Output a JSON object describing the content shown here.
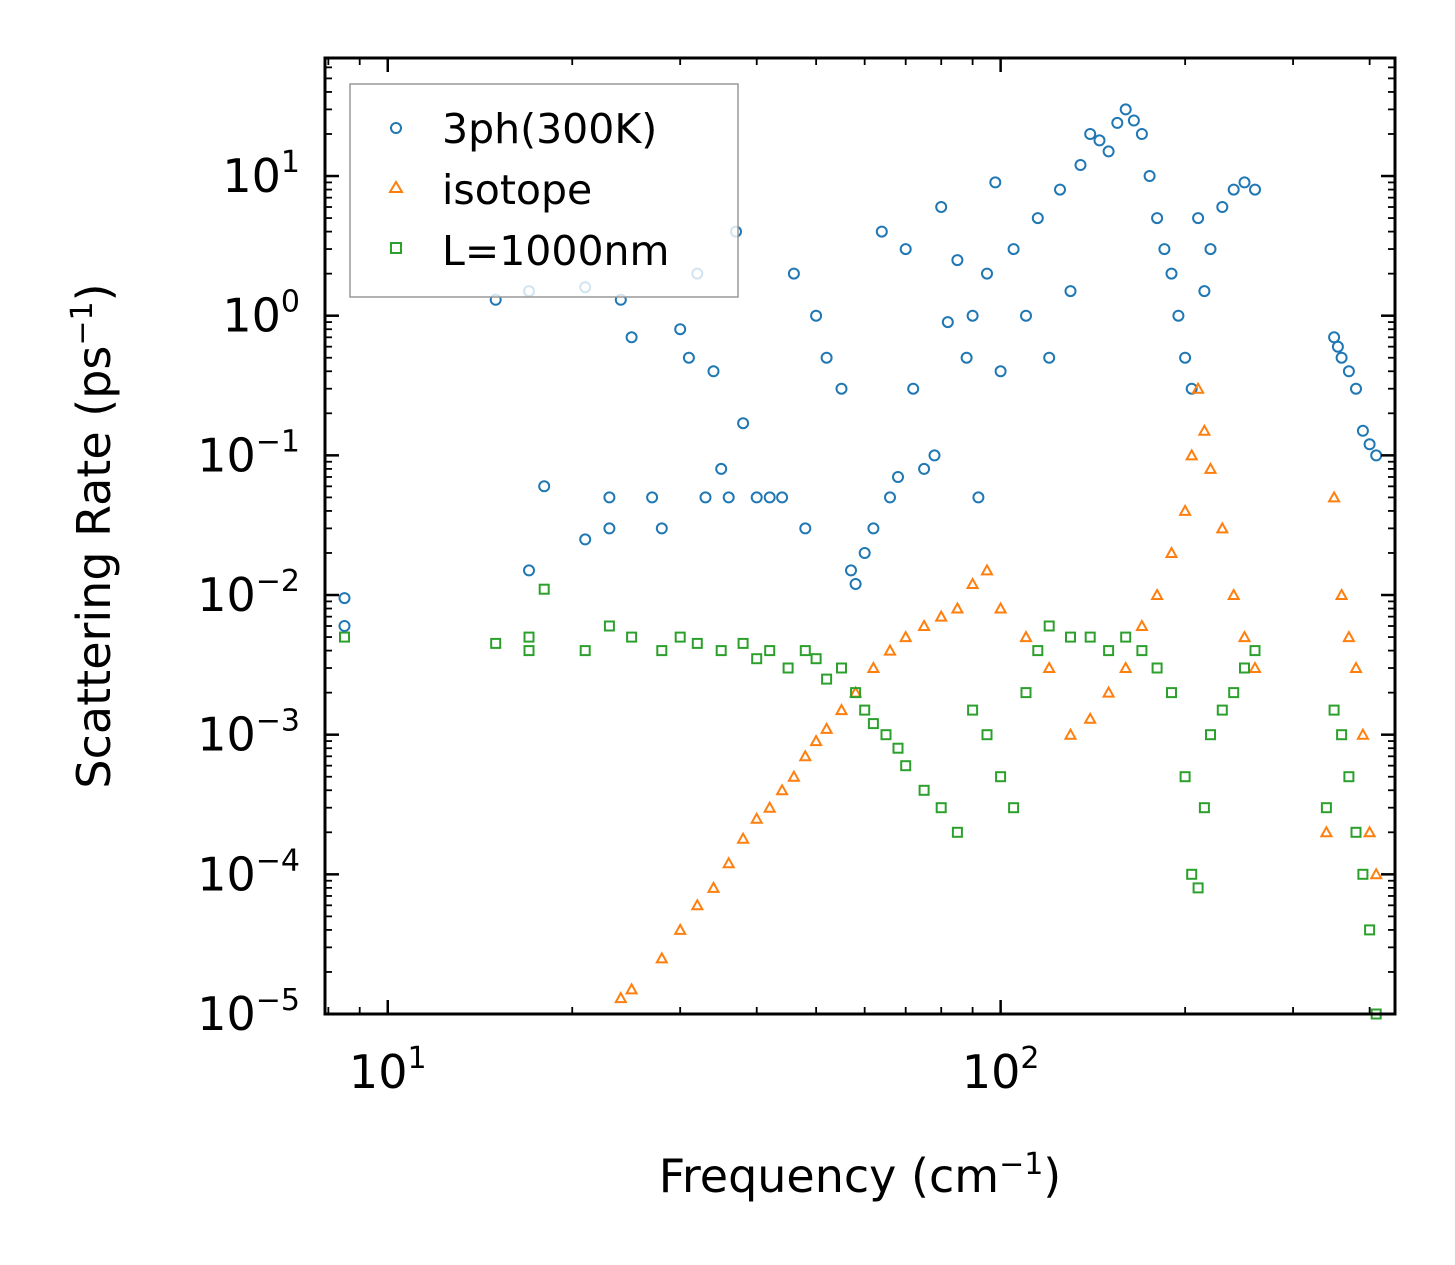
{
  "chart_data": {
    "type": "scatter",
    "title": "",
    "xlabel": "Frequency (cm",
    "xlabel_sup": "−1",
    "xlabel_tail": ")",
    "ylabel": "Scattering Rate (ps",
    "ylabel_sup": "−1",
    "ylabel_tail": ")",
    "xscale": "log",
    "yscale": "log",
    "xlim": [
      7.9,
      440
    ],
    "ylim": [
      1e-05,
      70
    ],
    "xticks": [
      {
        "base": "10",
        "exp": "1",
        "value": 10
      },
      {
        "base": "10",
        "exp": "2",
        "value": 100
      }
    ],
    "yticks": [
      {
        "base": "10",
        "exp": "1",
        "value": 10
      },
      {
        "base": "10",
        "exp": "0",
        "value": 1
      },
      {
        "base": "10",
        "exp": "−1",
        "value": 0.1
      },
      {
        "base": "10",
        "exp": "−2",
        "value": 0.01
      },
      {
        "base": "10",
        "exp": "−3",
        "value": 0.001
      },
      {
        "base": "10",
        "exp": "−4",
        "value": 0.0001
      },
      {
        "base": "10",
        "exp": "−5",
        "value": 1e-05
      }
    ],
    "legend_position": "top-left",
    "series": [
      {
        "name": "3ph(300K)",
        "marker": "circle",
        "color": "#1f77b4",
        "points": [
          [
            8.5,
            0.0095
          ],
          [
            8.5,
            0.006
          ],
          [
            15,
            1.3
          ],
          [
            17,
            0.015
          ],
          [
            17,
            1.5
          ],
          [
            18,
            0.06
          ],
          [
            21,
            0.025
          ],
          [
            21,
            1.6
          ],
          [
            23,
            0.05
          ],
          [
            23,
            0.03
          ],
          [
            24,
            1.3
          ],
          [
            25,
            0.7
          ],
          [
            27,
            0.05
          ],
          [
            28,
            0.03
          ],
          [
            30,
            0.8
          ],
          [
            31,
            0.5
          ],
          [
            32,
            2.0
          ],
          [
            33,
            0.05
          ],
          [
            34,
            0.4
          ],
          [
            35,
            0.08
          ],
          [
            36,
            0.05
          ],
          [
            37,
            4.0
          ],
          [
            38,
            0.17
          ],
          [
            40,
            0.05
          ],
          [
            42,
            0.05
          ],
          [
            44,
            0.05
          ],
          [
            46,
            2.0
          ],
          [
            48,
            0.03
          ],
          [
            50,
            1.0
          ],
          [
            52,
            0.5
          ],
          [
            55,
            0.3
          ],
          [
            57,
            0.015
          ],
          [
            58,
            0.012
          ],
          [
            60,
            0.02
          ],
          [
            62,
            0.03
          ],
          [
            64,
            4.0
          ],
          [
            66,
            0.05
          ],
          [
            68,
            0.07
          ],
          [
            70,
            3.0
          ],
          [
            72,
            0.3
          ],
          [
            75,
            0.08
          ],
          [
            78,
            0.1
          ],
          [
            80,
            6.0
          ],
          [
            82,
            0.9
          ],
          [
            85,
            2.5
          ],
          [
            88,
            0.5
          ],
          [
            90,
            1.0
          ],
          [
            92,
            0.05
          ],
          [
            95,
            2.0
          ],
          [
            98,
            9.0
          ],
          [
            100,
            0.4
          ],
          [
            105,
            3.0
          ],
          [
            110,
            1.0
          ],
          [
            115,
            5.0
          ],
          [
            120,
            0.5
          ],
          [
            125,
            8.0
          ],
          [
            130,
            1.5
          ],
          [
            135,
            12.0
          ],
          [
            140,
            20.0
          ],
          [
            145,
            18.0
          ],
          [
            150,
            15.0
          ],
          [
            155,
            24.0
          ],
          [
            160,
            30.0
          ],
          [
            165,
            25.0
          ],
          [
            170,
            20.0
          ],
          [
            175,
            10.0
          ],
          [
            180,
            5.0
          ],
          [
            185,
            3.0
          ],
          [
            190,
            2.0
          ],
          [
            195,
            1.0
          ],
          [
            200,
            0.5
          ],
          [
            205,
            0.3
          ],
          [
            210,
            5.0
          ],
          [
            215,
            1.5
          ],
          [
            220,
            3.0
          ],
          [
            230,
            6.0
          ],
          [
            240,
            8.0
          ],
          [
            250,
            9.0
          ],
          [
            260,
            8.0
          ],
          [
            350,
            0.7
          ],
          [
            355,
            0.6
          ],
          [
            360,
            0.5
          ],
          [
            370,
            0.4
          ],
          [
            380,
            0.3
          ],
          [
            390,
            0.15
          ],
          [
            400,
            0.12
          ],
          [
            410,
            0.1
          ]
        ]
      },
      {
        "name": "isotope",
        "marker": "triangle",
        "color": "#ff7f0e",
        "points": [
          [
            24,
            1.3e-05
          ],
          [
            25,
            1.5e-05
          ],
          [
            28,
            2.5e-05
          ],
          [
            30,
            4e-05
          ],
          [
            32,
            6e-05
          ],
          [
            34,
            8e-05
          ],
          [
            36,
            0.00012
          ],
          [
            38,
            0.00018
          ],
          [
            40,
            0.00025
          ],
          [
            42,
            0.0003
          ],
          [
            44,
            0.0004
          ],
          [
            46,
            0.0005
          ],
          [
            48,
            0.0007
          ],
          [
            50,
            0.0009
          ],
          [
            52,
            0.0011
          ],
          [
            55,
            0.0015
          ],
          [
            58,
            0.002
          ],
          [
            62,
            0.003
          ],
          [
            66,
            0.004
          ],
          [
            70,
            0.005
          ],
          [
            75,
            0.006
          ],
          [
            80,
            0.007
          ],
          [
            85,
            0.008
          ],
          [
            90,
            0.012
          ],
          [
            95,
            0.015
          ],
          [
            100,
            0.008
          ],
          [
            110,
            0.005
          ],
          [
            120,
            0.003
          ],
          [
            130,
            0.001
          ],
          [
            140,
            0.0013
          ],
          [
            150,
            0.002
          ],
          [
            160,
            0.003
          ],
          [
            170,
            0.006
          ],
          [
            180,
            0.01
          ],
          [
            190,
            0.02
          ],
          [
            200,
            0.04
          ],
          [
            205,
            0.1
          ],
          [
            210,
            0.3
          ],
          [
            215,
            0.15
          ],
          [
            220,
            0.08
          ],
          [
            230,
            0.03
          ],
          [
            240,
            0.01
          ],
          [
            250,
            0.005
          ],
          [
            260,
            0.003
          ],
          [
            340,
            0.0002
          ],
          [
            350,
            0.05
          ],
          [
            360,
            0.01
          ],
          [
            370,
            0.005
          ],
          [
            380,
            0.003
          ],
          [
            390,
            0.001
          ],
          [
            400,
            0.0002
          ],
          [
            410,
            0.0001
          ]
        ]
      },
      {
        "name": "L=1000nm",
        "marker": "square",
        "color": "#2ca02c",
        "points": [
          [
            8.5,
            0.005
          ],
          [
            15,
            0.0045
          ],
          [
            17,
            0.005
          ],
          [
            17,
            0.004
          ],
          [
            18,
            0.011
          ],
          [
            21,
            0.004
          ],
          [
            23,
            0.006
          ],
          [
            25,
            0.005
          ],
          [
            28,
            0.004
          ],
          [
            30,
            0.005
          ],
          [
            32,
            0.0045
          ],
          [
            35,
            0.004
          ],
          [
            38,
            0.0045
          ],
          [
            40,
            0.0035
          ],
          [
            42,
            0.004
          ],
          [
            45,
            0.003
          ],
          [
            48,
            0.004
          ],
          [
            50,
            0.0035
          ],
          [
            52,
            0.0025
          ],
          [
            55,
            0.003
          ],
          [
            58,
            0.002
          ],
          [
            60,
            0.0015
          ],
          [
            62,
            0.0012
          ],
          [
            65,
            0.001
          ],
          [
            68,
            0.0008
          ],
          [
            70,
            0.0006
          ],
          [
            75,
            0.0004
          ],
          [
            80,
            0.0003
          ],
          [
            85,
            0.0002
          ],
          [
            90,
            0.0015
          ],
          [
            95,
            0.001
          ],
          [
            100,
            0.0005
          ],
          [
            105,
            0.0003
          ],
          [
            110,
            0.002
          ],
          [
            115,
            0.004
          ],
          [
            120,
            0.006
          ],
          [
            130,
            0.005
          ],
          [
            140,
            0.005
          ],
          [
            150,
            0.004
          ],
          [
            160,
            0.005
          ],
          [
            170,
            0.004
          ],
          [
            180,
            0.003
          ],
          [
            190,
            0.002
          ],
          [
            200,
            0.0005
          ],
          [
            205,
            0.0001
          ],
          [
            210,
            8e-05
          ],
          [
            215,
            0.0003
          ],
          [
            220,
            0.001
          ],
          [
            230,
            0.0015
          ],
          [
            240,
            0.002
          ],
          [
            250,
            0.003
          ],
          [
            260,
            0.004
          ],
          [
            340,
            0.0003
          ],
          [
            350,
            0.0015
          ],
          [
            360,
            0.001
          ],
          [
            370,
            0.0005
          ],
          [
            380,
            0.0002
          ],
          [
            390,
            0.0001
          ],
          [
            400,
            4e-05
          ],
          [
            410,
            1e-05
          ]
        ]
      }
    ]
  }
}
